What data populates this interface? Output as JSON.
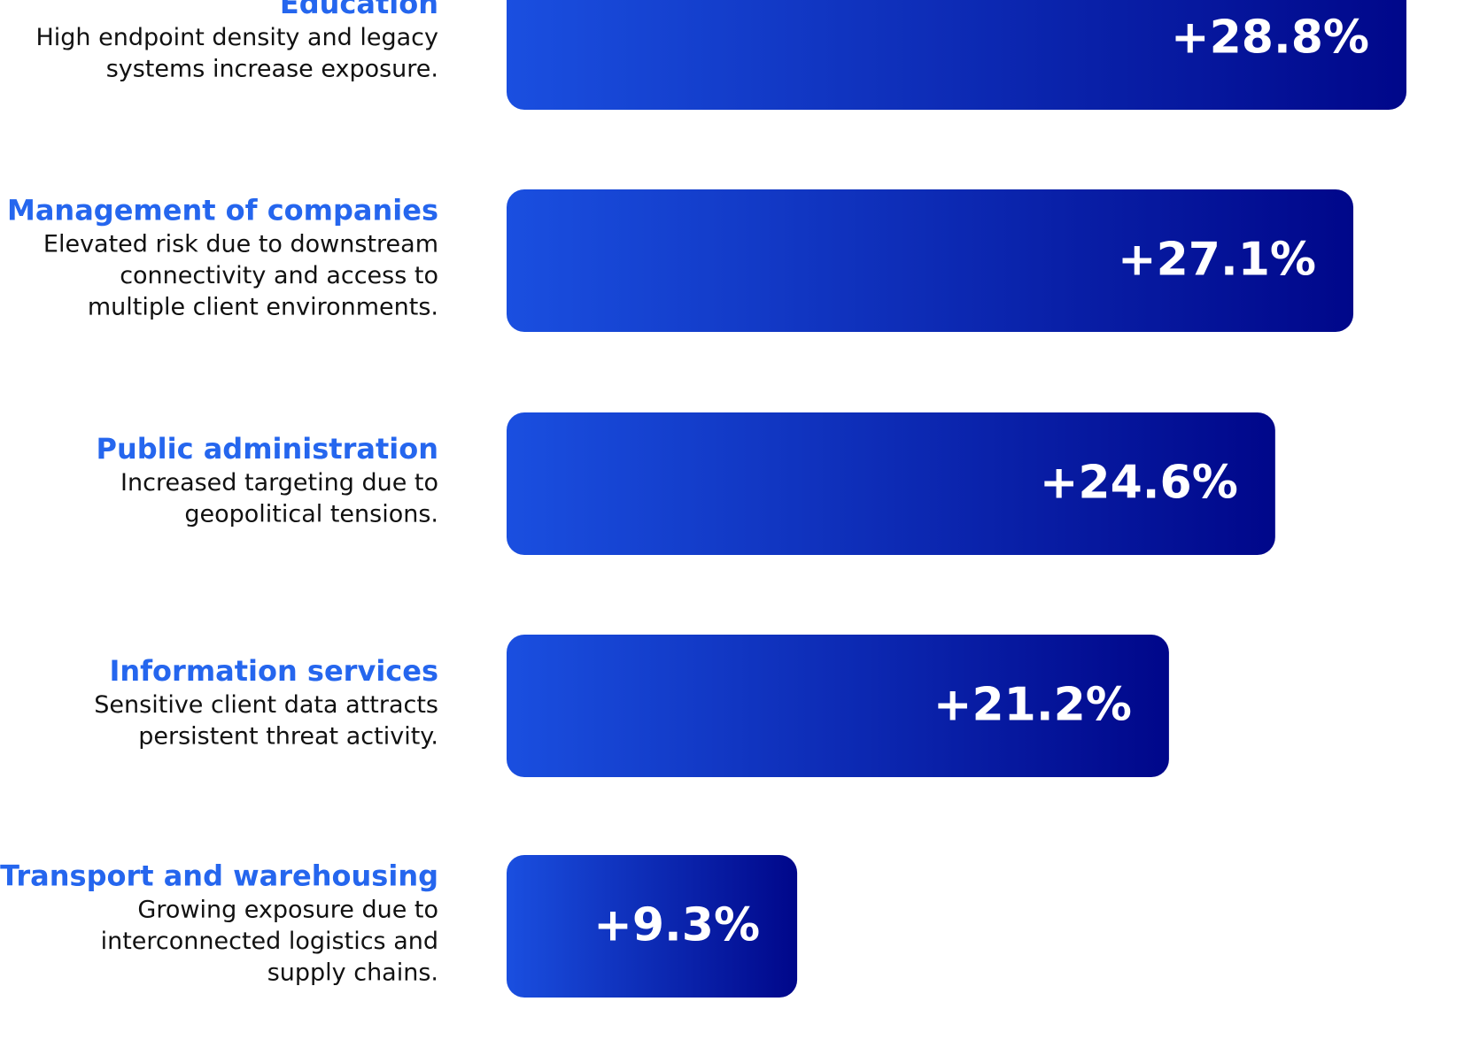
{
  "chart_data": {
    "type": "bar",
    "orientation": "horizontal",
    "categories": [
      "Education",
      "Management of companies",
      "Public administration",
      "Information services",
      "Transport and warehousing"
    ],
    "descriptions": [
      [
        "High endpoint density and legacy",
        "systems increase exposure."
      ],
      [
        "Elevated risk due to downstream",
        "connectivity and access to",
        "multiple client environments."
      ],
      [
        "Increased targeting due to",
        "geopolitical tensions."
      ],
      [
        "Sensitive client data attracts",
        "persistent threat activity."
      ],
      [
        "Growing exposure due to",
        "interconnected logistics and",
        "supply chains."
      ]
    ],
    "values": [
      28.8,
      27.1,
      24.6,
      21.2,
      9.3
    ],
    "value_labels": [
      "+28.8%",
      "+27.1%",
      "+24.6%",
      "+21.2%",
      "+9.3%"
    ],
    "color": [
      "#1a4fe0",
      "#00078a"
    ]
  }
}
